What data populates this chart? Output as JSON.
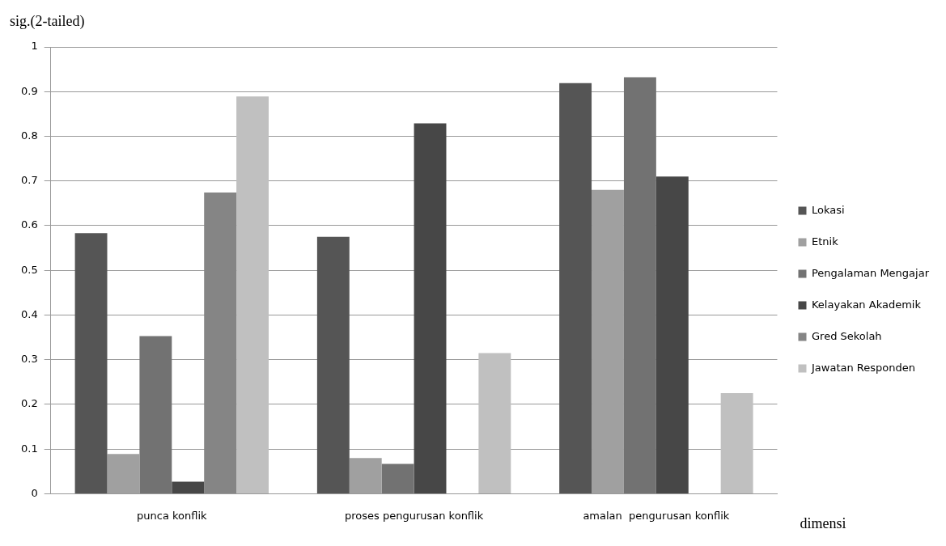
{
  "chart_data": {
    "type": "bar",
    "ylabel": "sig.(2-tailed)",
    "xlabel": "dimensi",
    "categories": [
      "punca konflik",
      "proses pengurusan konflik",
      "amalan  pengurusan konflik"
    ],
    "series": [
      {
        "name": "Lokasi",
        "color": "#555555",
        "values": [
          0.583,
          0.575,
          0.919
        ]
      },
      {
        "name": "Etnik",
        "color": "#a0a0a0",
        "values": [
          0.089,
          0.08,
          0.68
        ]
      },
      {
        "name": "Pengalaman Mengajar",
        "color": "#727272",
        "values": [
          0.353,
          0.067,
          0.932
        ]
      },
      {
        "name": "Kelayakan Akademik",
        "color": "#474747",
        "values": [
          0.027,
          0.829,
          0.71
        ]
      },
      {
        "name": "Gred Sekolah",
        "color": "#858585",
        "values": [
          0.674,
          null,
          null
        ]
      },
      {
        "name": "Jawatan Responden",
        "color": "#c0c0c0",
        "values": [
          0.889,
          0.315,
          0.225
        ]
      }
    ],
    "ylim": [
      0,
      1
    ],
    "yticks": [
      0,
      0.1,
      0.2,
      0.3,
      0.4,
      0.5,
      0.6,
      0.7,
      0.8,
      0.9,
      1
    ],
    "grid": "y",
    "legend": "right"
  }
}
